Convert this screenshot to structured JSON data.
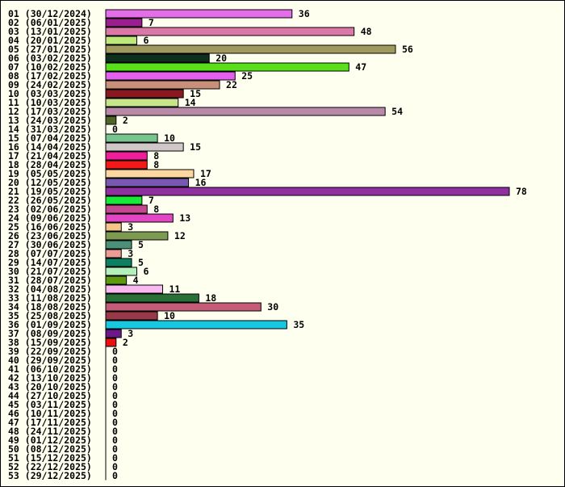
{
  "chart_data": {
    "type": "bar",
    "orientation": "horizontal",
    "title": "",
    "xlabel": "",
    "ylabel": "",
    "grid": false,
    "legend": "none",
    "xlim": [
      0,
      78
    ],
    "categories": [
      "01 (30/12/2024)",
      "02 (06/01/2025)",
      "03 (13/01/2025)",
      "04 (20/01/2025)",
      "05 (27/01/2025)",
      "06 (03/02/2025)",
      "07 (10/02/2025)",
      "08 (17/02/2025)",
      "09 (24/02/2025)",
      "10 (03/03/2025)",
      "11 (10/03/2025)",
      "12 (17/03/2025)",
      "13 (24/03/2025)",
      "14 (31/03/2025)",
      "15 (07/04/2025)",
      "16 (14/04/2025)",
      "17 (21/04/2025)",
      "18 (28/04/2025)",
      "19 (05/05/2025)",
      "20 (12/05/2025)",
      "21 (19/05/2025)",
      "22 (26/05/2025)",
      "23 (02/06/2025)",
      "24 (09/06/2025)",
      "25 (16/06/2025)",
      "26 (23/06/2025)",
      "27 (30/06/2025)",
      "28 (07/07/2025)",
      "29 (14/07/2025)",
      "30 (21/07/2025)",
      "31 (28/07/2025)",
      "32 (04/08/2025)",
      "33 (11/08/2025)",
      "34 (18/08/2025)",
      "35 (25/08/2025)",
      "36 (01/09/2025)",
      "37 (08/09/2025)",
      "38 (15/09/2025)",
      "39 (22/09/2025)",
      "40 (29/09/2025)",
      "41 (06/10/2025)",
      "42 (13/10/2025)",
      "43 (20/10/2025)",
      "44 (27/10/2025)",
      "45 (03/11/2025)",
      "46 (10/11/2025)",
      "47 (17/11/2025)",
      "48 (24/11/2025)",
      "49 (01/12/2025)",
      "50 (08/12/2025)",
      "51 (15/12/2025)",
      "52 (22/12/2025)",
      "53 (29/12/2025)"
    ],
    "values": [
      36,
      7,
      48,
      6,
      56,
      20,
      47,
      25,
      22,
      15,
      14,
      54,
      2,
      0,
      10,
      15,
      8,
      8,
      17,
      16,
      78,
      7,
      8,
      13,
      3,
      12,
      5,
      3,
      5,
      6,
      4,
      11,
      18,
      30,
      10,
      35,
      3,
      2,
      0,
      0,
      0,
      0,
      0,
      0,
      0,
      0,
      0,
      0,
      0,
      0,
      0,
      0,
      0
    ],
    "colors": [
      "#e46ee8",
      "#9b1e8e",
      "#dc78a8",
      "#bde87a",
      "#a09a5e",
      "#0e2e1e",
      "#5ae01a",
      "#e35fef",
      "#c89078",
      "#8a1820",
      "#c6e488",
      "#b88aa8",
      "#506428",
      "#ffffff",
      "#78c48e",
      "#d0c8c8",
      "#f01e9a",
      "#f41818",
      "#fcd8a0",
      "#7858b0",
      "#9030a0",
      "#18e838",
      "#c44890",
      "#e246c2",
      "#f4c488",
      "#7c9a50",
      "#4a9078",
      "#ec9c94",
      "#0c8060",
      "#b4f0bc",
      "#5e9a10",
      "#f8b8f0",
      "#287038",
      "#c45c78",
      "#983848",
      "#18c8e0",
      "#6c1888",
      "#e81010",
      "#ffffff",
      "#ffffff",
      "#ffffff",
      "#ffffff",
      "#ffffff",
      "#ffffff",
      "#ffffff",
      "#ffffff",
      "#ffffff",
      "#ffffff",
      "#ffffff",
      "#ffffff",
      "#ffffff",
      "#ffffff",
      "#ffffff"
    ]
  }
}
